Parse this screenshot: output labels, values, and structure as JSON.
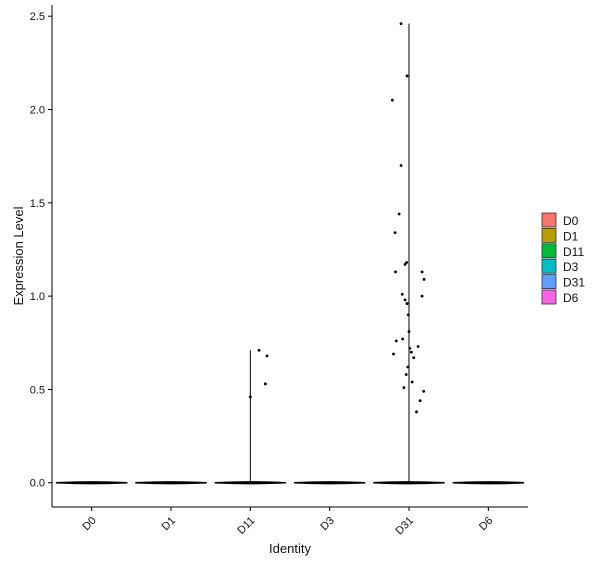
{
  "chart_data": {
    "type": "violin",
    "title": "",
    "xlabel": "Identity",
    "ylabel": "Expression Level",
    "categories": [
      "D0",
      "D1",
      "D11",
      "D3",
      "D31",
      "D6"
    ],
    "ylim": [
      -0.13,
      2.56
    ],
    "yticks": [
      0.0,
      0.5,
      1.0,
      1.5,
      2.0,
      2.5
    ],
    "ytick_labels": [
      "0.0",
      "0.5",
      "1.0",
      "1.5",
      "2.0",
      "2.5"
    ],
    "violin_max": [
      0,
      0,
      0.71,
      0,
      2.46,
      0
    ],
    "fill_colors": [
      "#F8766D",
      "#B79F00",
      "#00BA38",
      "#00BFC4",
      "#619CFF",
      "#F564E3"
    ],
    "points": [
      {
        "category": "D11",
        "jitter": 0.0,
        "y": 0.46
      },
      {
        "category": "D11",
        "jitter": 0.22,
        "y": 0.71
      },
      {
        "category": "D11",
        "jitter": 0.42,
        "y": 0.68
      },
      {
        "category": "D11",
        "jitter": 0.38,
        "y": 0.53
      },
      {
        "category": "D31",
        "jitter": -0.42,
        "y": 2.05
      },
      {
        "category": "D31",
        "jitter": -0.2,
        "y": 2.46
      },
      {
        "category": "D31",
        "jitter": -0.2,
        "y": 1.7
      },
      {
        "category": "D31",
        "jitter": -0.05,
        "y": 2.18
      },
      {
        "category": "D31",
        "jitter": -0.25,
        "y": 1.44
      },
      {
        "category": "D31",
        "jitter": -0.35,
        "y": 1.34
      },
      {
        "category": "D31",
        "jitter": -0.34,
        "y": 1.13
      },
      {
        "category": "D31",
        "jitter": -0.1,
        "y": 1.17
      },
      {
        "category": "D31",
        "jitter": -0.06,
        "y": 1.18
      },
      {
        "category": "D31",
        "jitter": -0.17,
        "y": 1.01
      },
      {
        "category": "D31",
        "jitter": -0.1,
        "y": 0.98
      },
      {
        "category": "D31",
        "jitter": -0.05,
        "y": 0.96
      },
      {
        "category": "D31",
        "jitter": -0.02,
        "y": 0.9
      },
      {
        "category": "D31",
        "jitter": 0.0,
        "y": 0.81
      },
      {
        "category": "D31",
        "jitter": -0.32,
        "y": 0.76
      },
      {
        "category": "D31",
        "jitter": -0.16,
        "y": 0.77
      },
      {
        "category": "D31",
        "jitter": 0.02,
        "y": 0.72
      },
      {
        "category": "D31",
        "jitter": 0.06,
        "y": 0.7
      },
      {
        "category": "D31",
        "jitter": -0.39,
        "y": 0.69
      },
      {
        "category": "D31",
        "jitter": 0.12,
        "y": 0.67
      },
      {
        "category": "D31",
        "jitter": 0.23,
        "y": 0.73
      },
      {
        "category": "D31",
        "jitter": -0.03,
        "y": 0.62
      },
      {
        "category": "D31",
        "jitter": -0.07,
        "y": 0.58
      },
      {
        "category": "D31",
        "jitter": 0.08,
        "y": 0.54
      },
      {
        "category": "D31",
        "jitter": -0.13,
        "y": 0.51
      },
      {
        "category": "D31",
        "jitter": 0.37,
        "y": 0.49
      },
      {
        "category": "D31",
        "jitter": 0.28,
        "y": 0.44
      },
      {
        "category": "D31",
        "jitter": 0.19,
        "y": 0.38
      },
      {
        "category": "D31",
        "jitter": 0.33,
        "y": 1.13
      },
      {
        "category": "D31",
        "jitter": 0.38,
        "y": 1.09
      },
      {
        "category": "D31",
        "jitter": 0.33,
        "y": 1.0
      }
    ],
    "legend": {
      "placement": "right",
      "entries": [
        "D0",
        "D1",
        "D11",
        "D3",
        "D31",
        "D6"
      ]
    },
    "grid": false
  }
}
